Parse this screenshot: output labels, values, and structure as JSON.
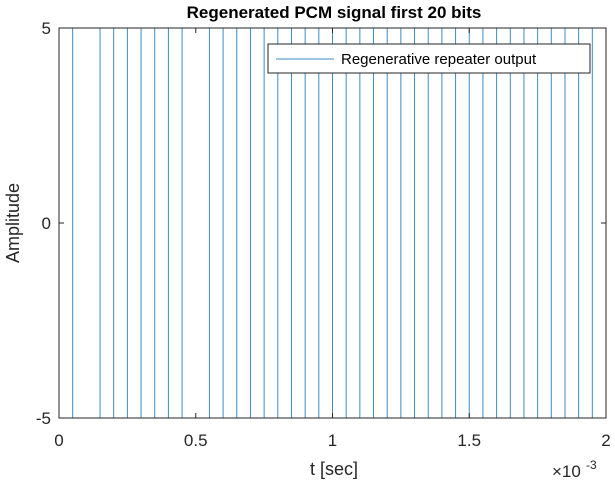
{
  "chart_data": {
    "type": "line",
    "title": "Regenerated PCM signal first 20 bits",
    "xlabel": "t [sec]",
    "ylabel": "Amplitude",
    "x_exponent_label": "×10",
    "x_exponent_power": "-3",
    "xlim": [
      0,
      0.002
    ],
    "ylim": [
      -5,
      5
    ],
    "xticks": [
      0,
      0.0005,
      0.001,
      0.0015,
      0.002
    ],
    "xtick_labels": [
      "0",
      "0.5",
      "1",
      "1.5",
      "2"
    ],
    "yticks": [
      -5,
      0,
      5
    ],
    "ytick_labels": [
      "-5",
      "0",
      "5"
    ],
    "grid": false,
    "legend_position": "top-right",
    "series": [
      {
        "name": "Regenerative repeater output",
        "color": "#3a8ec4",
        "style": "step",
        "x": [
          0,
          5e-05,
          5e-05,
          0.00015,
          0.00015,
          0.0002,
          0.0002,
          0.00025,
          0.00025,
          0.0003,
          0.0003,
          0.00035,
          0.00035,
          0.0004,
          0.0004,
          0.00045,
          0.00045,
          0.00055,
          0.00055,
          0.0006,
          0.0006,
          0.00065,
          0.00065,
          0.0007,
          0.0007,
          0.00075,
          0.00075,
          0.0008,
          0.0008,
          0.00085,
          0.00085,
          0.0009,
          0.0009,
          0.00095,
          0.00095,
          0.001,
          0.001,
          0.00105,
          0.00105,
          0.0011,
          0.0011,
          0.00115,
          0.00115,
          0.0012,
          0.0012,
          0.00125,
          0.00125,
          0.0013,
          0.0013,
          0.00135,
          0.00135,
          0.0014,
          0.0014,
          0.00145,
          0.00145,
          0.0015,
          0.0015,
          0.00155,
          0.00155,
          0.0016,
          0.0016,
          0.00165,
          0.00165,
          0.0017,
          0.0017,
          0.00175,
          0.00175,
          0.0018,
          0.0018,
          0.00185,
          0.00185,
          0.0019,
          0.0019,
          0.00195,
          0.00195,
          0.002
        ],
        "y": [
          -5,
          -5,
          5,
          5,
          -5,
          -5,
          5,
          5,
          -5,
          -5,
          5,
          5,
          -5,
          -5,
          5,
          5,
          -5,
          -5,
          5,
          5,
          -5,
          -5,
          5,
          5,
          -5,
          -5,
          5,
          5,
          -5,
          -5,
          5,
          5,
          -5,
          -5,
          5,
          5,
          -5,
          -5,
          5,
          5,
          -5,
          -5,
          5,
          5,
          -5,
          -5,
          5,
          5,
          -5,
          -5,
          5,
          5,
          -5,
          -5,
          5,
          5,
          -5,
          -5,
          5,
          5,
          -5,
          -5,
          5,
          5,
          -5,
          -5,
          5,
          5,
          -5,
          -5,
          5,
          5,
          -5,
          -5,
          5,
          5
        ]
      }
    ]
  }
}
